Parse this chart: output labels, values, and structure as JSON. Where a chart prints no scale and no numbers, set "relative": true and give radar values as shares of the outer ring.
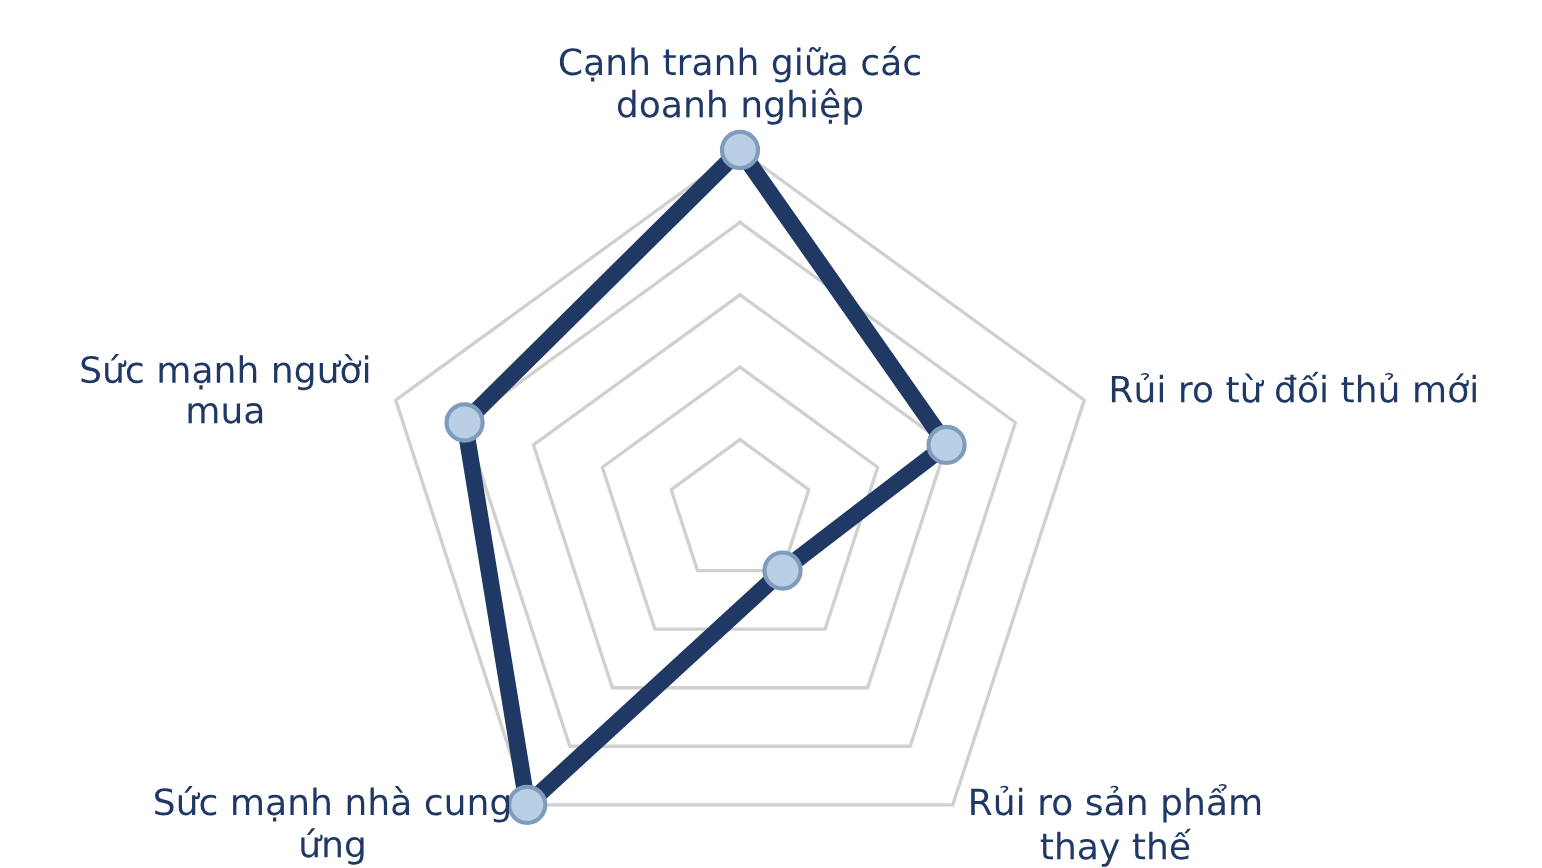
{
  "chart_data": {
    "type": "radar",
    "relative": true,
    "grid": true,
    "marker": "circle",
    "line_style": "solid",
    "categories": [
      "Cạnh tranh giữa các\ndoanh nghiệp",
      "Rủi ro từ đối thủ mới",
      "Rủi ro sản phẩm\nthay thế",
      "Sức mạnh nhà cung\nứng",
      "Sức mạnh người\nmua"
    ],
    "series": [
      {
        "color": "#1f3864",
        "values": [
          1.0,
          0.6,
          0.2,
          1.0,
          0.8
        ]
      }
    ]
  }
}
